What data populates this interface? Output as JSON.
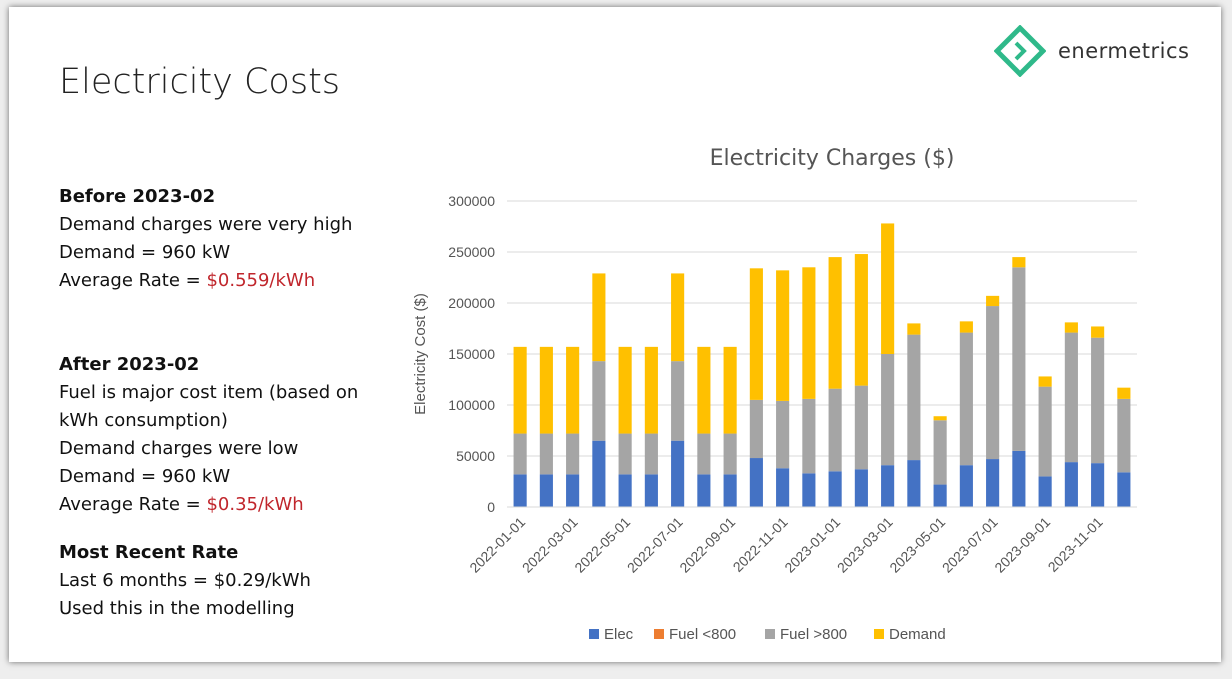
{
  "slide": {
    "title": "Electricity Costs",
    "logo_text": "enermetrics"
  },
  "notes": {
    "before": {
      "heading": "Before 2023-02",
      "line1": "Demand charges were very high",
      "line2": "Demand = 960 kW",
      "rate_prefix": "Average Rate = ",
      "rate_value": "$0.559/kWh"
    },
    "after": {
      "heading": "After 2023-02",
      "line1": "Fuel is major cost item (based on kWh consumption)",
      "line2": "Demand charges were low",
      "line3": "Demand = 960 kW",
      "rate_prefix": "Average Rate = ",
      "rate_value": "$0.35/kWh"
    },
    "recent": {
      "heading": "Most Recent Rate",
      "line1": "Last 6 months = $0.29/kWh",
      "line2": "Used this in the modelling"
    }
  },
  "colors": {
    "elec": "#4472c4",
    "fuel_lt_800": "#ed7d31",
    "fuel_gt_800": "#a5a5a5",
    "demand": "#ffc000",
    "gridline": "#d9d9d9",
    "red_text": "#c0262c",
    "logo_green": "#2fb98a"
  },
  "chart_data": {
    "type": "bar",
    "stacked": true,
    "title": "Electricity Charges ($)",
    "xlabel": "",
    "ylabel": "Electricity Cost ($)",
    "ylim": [
      0,
      300000
    ],
    "yticks": [
      0,
      50000,
      100000,
      150000,
      200000,
      250000,
      300000
    ],
    "grid": true,
    "legend": "bottom",
    "categories": [
      "2022-01-01",
      "2022-02-01",
      "2022-03-01",
      "2022-04-01",
      "2022-05-01",
      "2022-06-01",
      "2022-07-01",
      "2022-08-01",
      "2022-09-01",
      "2022-10-01",
      "2022-11-01",
      "2022-12-01",
      "2023-01-01",
      "2023-02-01",
      "2023-03-01",
      "2023-04-01",
      "2023-05-01",
      "2023-06-01",
      "2023-07-01",
      "2023-08-01",
      "2023-09-01",
      "2023-10-01",
      "2023-11-01",
      "2023-12-01"
    ],
    "xtick_labels": [
      "2022-01-01",
      "2022-03-01",
      "2022-05-01",
      "2022-07-01",
      "2022-09-01",
      "2022-11-01",
      "2023-01-01",
      "2023-03-01",
      "2023-05-01",
      "2023-07-01",
      "2023-09-01",
      "2023-11-01"
    ],
    "series": [
      {
        "name": "Elec",
        "values": [
          32000,
          32000,
          32000,
          65000,
          32000,
          32000,
          65000,
          32000,
          32000,
          48000,
          38000,
          33000,
          35000,
          37000,
          41000,
          46000,
          22000,
          41000,
          47000,
          55000,
          30000,
          44000,
          43000,
          34000
        ]
      },
      {
        "name": "Fuel <800",
        "values": [
          0,
          0,
          0,
          0,
          0,
          0,
          0,
          0,
          0,
          0,
          0,
          0,
          0,
          0,
          0,
          0,
          0,
          0,
          0,
          0,
          0,
          0,
          0,
          0
        ]
      },
      {
        "name": "Fuel >800",
        "values": [
          40000,
          40000,
          40000,
          78000,
          40000,
          40000,
          78000,
          40000,
          40000,
          57000,
          66000,
          73000,
          81000,
          82000,
          109000,
          123000,
          63000,
          130000,
          150000,
          180000,
          88000,
          127000,
          123000,
          72000
        ]
      },
      {
        "name": "Demand",
        "values": [
          85000,
          85000,
          85000,
          86000,
          85000,
          85000,
          86000,
          85000,
          85000,
          129000,
          128000,
          129000,
          129000,
          129000,
          128000,
          11000,
          4000,
          11000,
          10000,
          10000,
          10000,
          10000,
          11000,
          11000
        ]
      }
    ]
  }
}
